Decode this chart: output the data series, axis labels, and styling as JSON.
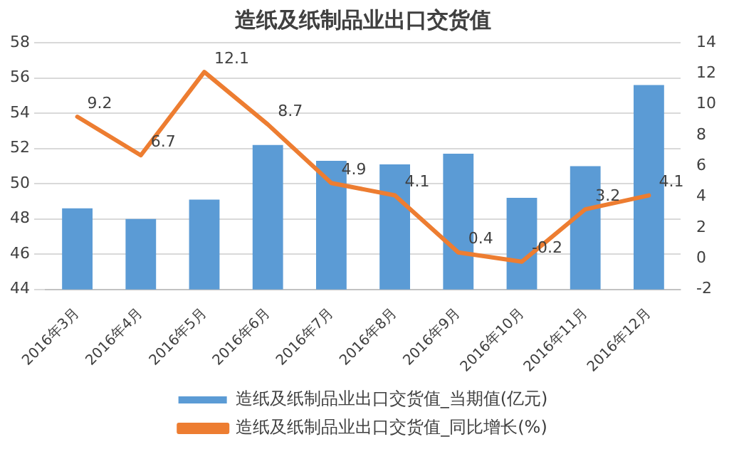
{
  "chart_data": {
    "type": "bar",
    "title": "造纸及纸制品业出口交货值",
    "categories": [
      "2016年3月",
      "2016年4月",
      "2016年5月",
      "2016年6月",
      "2016年7月",
      "2016年8月",
      "2016年9月",
      "2016年10月",
      "2016年11月",
      "2016年12月"
    ],
    "series": [
      {
        "name": "造纸及纸制品业出口交货值_当期值(亿元)",
        "type": "bar",
        "color": "#5b9bd5",
        "values": [
          48.6,
          48.0,
          49.1,
          52.2,
          51.3,
          51.1,
          51.7,
          49.2,
          51.0,
          55.6
        ]
      },
      {
        "name": "造纸及纸制品业出口交货值_同比增长(%)",
        "type": "line",
        "axis": "y2",
        "color": "#ed7d31",
        "values": [
          9.2,
          6.7,
          12.1,
          8.7,
          4.9,
          4.1,
          0.4,
          -0.2,
          3.2,
          4.1
        ],
        "value_labels": [
          "9.2",
          "6.7",
          "12.1",
          "8.7",
          "4.9",
          "4.1",
          "0.4",
          "-0.2",
          "3.2",
          "4.1"
        ]
      }
    ],
    "ylim": [
      44,
      58
    ],
    "yticks": [
      44,
      46,
      48,
      50,
      52,
      54,
      56,
      58
    ],
    "y2lim": [
      -2,
      14
    ],
    "y2ticks": [
      -2,
      0,
      2,
      4,
      6,
      8,
      10,
      12,
      14
    ],
    "grid": "y",
    "legend": "bottom",
    "marker": "none"
  }
}
